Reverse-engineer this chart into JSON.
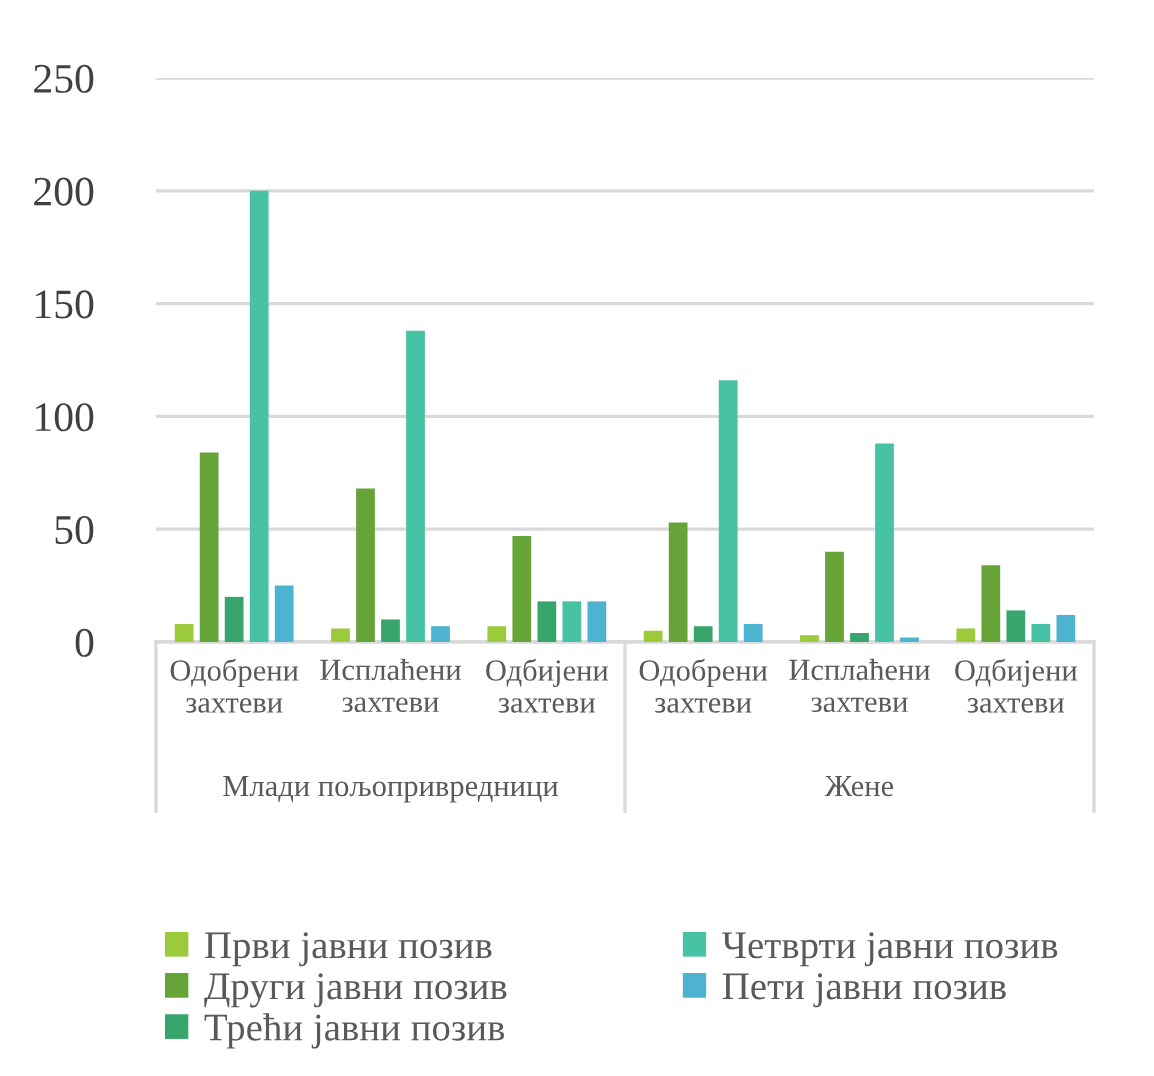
{
  "chart_data": {
    "type": "bar",
    "categories": [
      "Одобрени\nзахтеви",
      "Исплаћени\nзахтеви",
      "Одбијени\nзахтеви",
      "Одобрени\nзахтеви",
      "Исплаћени\nзахтеви",
      "Одбијени\nзахтеви"
    ],
    "annotations": [
      "Млади пољопривредници",
      "Жене"
    ],
    "series": [
      {
        "name": "Први јавни позив",
        "color": "#9bcb3b",
        "values": [
          8,
          6,
          7,
          5,
          3,
          6
        ]
      },
      {
        "name": "Други јавни позив",
        "color": "#66a437",
        "values": [
          84,
          68,
          47,
          53,
          40,
          34
        ]
      },
      {
        "name": "Трећи јавни позив",
        "color": "#38a66c",
        "values": [
          20,
          10,
          18,
          7,
          4,
          14
        ]
      },
      {
        "name": "Четврти јавни позив",
        "color": "#47c2a4",
        "values": [
          200,
          138,
          18,
          116,
          88,
          8
        ]
      },
      {
        "name": "Пети јавни позив",
        "color": "#4db3d1",
        "values": [
          25,
          7,
          18,
          8,
          2,
          12
        ]
      }
    ],
    "ylim": [
      0,
      250
    ],
    "yticks": [
      0,
      50,
      100,
      150,
      200,
      250
    ],
    "grid": "y",
    "legend": "bottom"
  }
}
